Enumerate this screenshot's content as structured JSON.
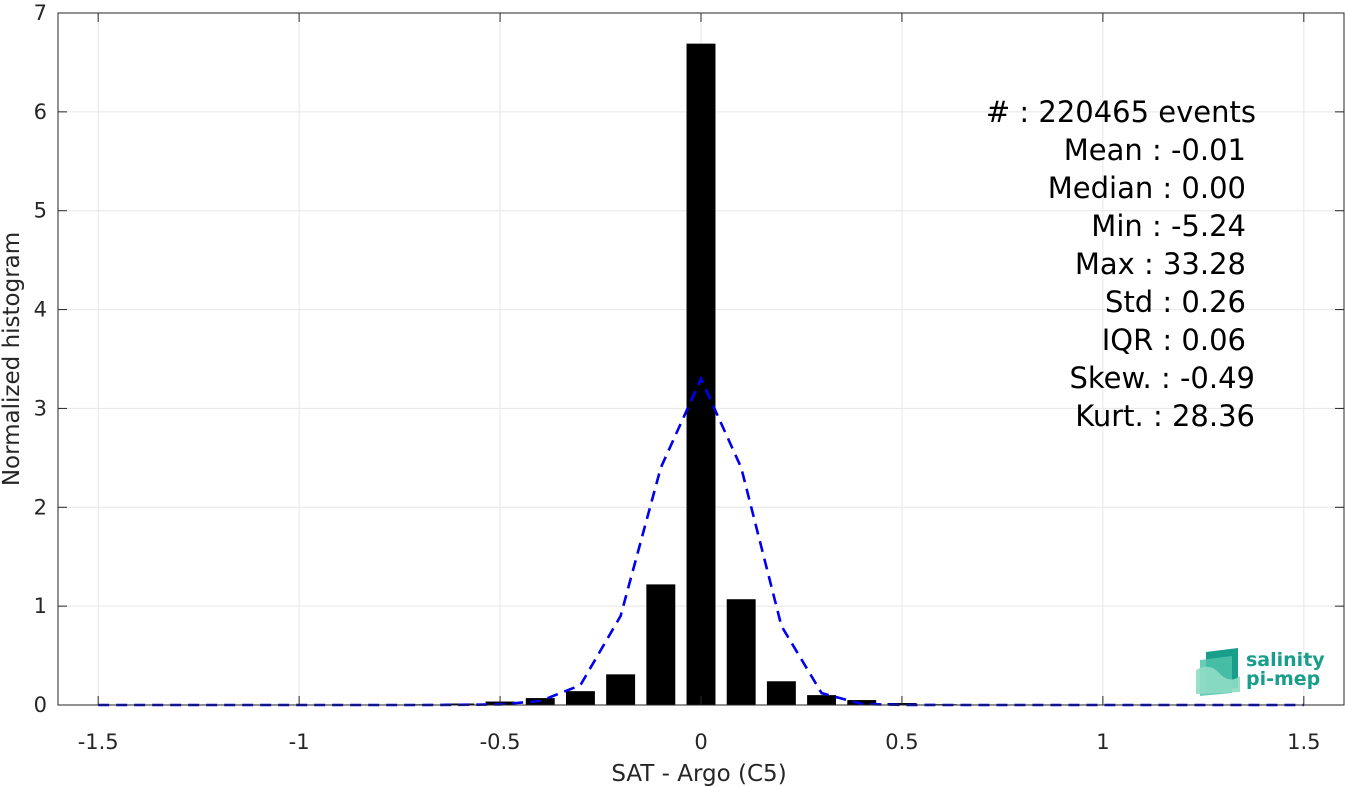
{
  "chart_data": {
    "type": "bar",
    "xlabel": "SAT - Argo (C5)",
    "ylabel": "Normalized histogram",
    "xlim": [
      -1.6,
      1.6
    ],
    "ylim": [
      0,
      7
    ],
    "xticks": [
      -1.5,
      -1,
      -0.5,
      0,
      0.5,
      1,
      1.5
    ],
    "xtick_labels": [
      "-1.5",
      "-1",
      "-0.5",
      "0",
      "0.5",
      "1",
      "1.5"
    ],
    "yticks": [
      0,
      1,
      2,
      3,
      4,
      5,
      6,
      7
    ],
    "ytick_labels": [
      "0",
      "1",
      "2",
      "3",
      "4",
      "5",
      "6",
      "7"
    ],
    "grid": true,
    "bar_color": "#000000",
    "line_color": "#0000ee",
    "bars": {
      "x": [
        -1.5,
        -1.4,
        -1.3,
        -1.2,
        -1.1,
        -1.0,
        -0.9,
        -0.8,
        -0.7,
        -0.6,
        -0.5,
        -0.4,
        -0.3,
        -0.2,
        -0.1,
        0.0,
        0.1,
        0.2,
        0.3,
        0.4,
        0.5,
        0.6,
        0.7,
        0.8,
        0.9,
        1.0,
        1.1,
        1.2,
        1.3,
        1.4,
        1.5
      ],
      "values": [
        0.004,
        0.004,
        0.004,
        0.004,
        0.004,
        0.004,
        0.004,
        0.005,
        0.007,
        0.015,
        0.035,
        0.07,
        0.14,
        0.31,
        1.22,
        6.69,
        1.07,
        0.24,
        0.1,
        0.05,
        0.02,
        0.008,
        0.005,
        0.004,
        0.004,
        0.004,
        0.004,
        0.004,
        0.004,
        0.004,
        0.004
      ]
    },
    "gaussian_fit": {
      "x": [
        -1.5,
        -1.4,
        -1.3,
        -1.2,
        -1.1,
        -1.0,
        -0.9,
        -0.8,
        -0.7,
        -0.6,
        -0.5,
        -0.4,
        -0.3,
        -0.2,
        -0.1,
        0.0,
        0.1,
        0.2,
        0.3,
        0.4,
        0.5,
        0.6,
        0.7,
        0.8,
        0.9,
        1.0,
        1.1,
        1.2,
        1.3,
        1.4,
        1.5
      ],
      "y": [
        0,
        0,
        0,
        0,
        0,
        0,
        0,
        0,
        0,
        0.002,
        0.006,
        0.04,
        0.2,
        0.9,
        2.4,
        3.3,
        2.4,
        0.8,
        0.12,
        0.01,
        0.001,
        0,
        0,
        0,
        0,
        0,
        0,
        0,
        0,
        0,
        0
      ]
    },
    "annotations": [
      "#  : 220465 events",
      "Mean : -0.01",
      "Median : 0.00",
      "Min : -5.24",
      "Max : 33.28",
      "Std : 0.26",
      "IQR : 0.06",
      "Skew. : -0.49",
      "Kurt. : 28.36"
    ]
  },
  "logo": {
    "line1": "salinity",
    "line2": "pi-mep",
    "color": "#1a9e8c"
  }
}
